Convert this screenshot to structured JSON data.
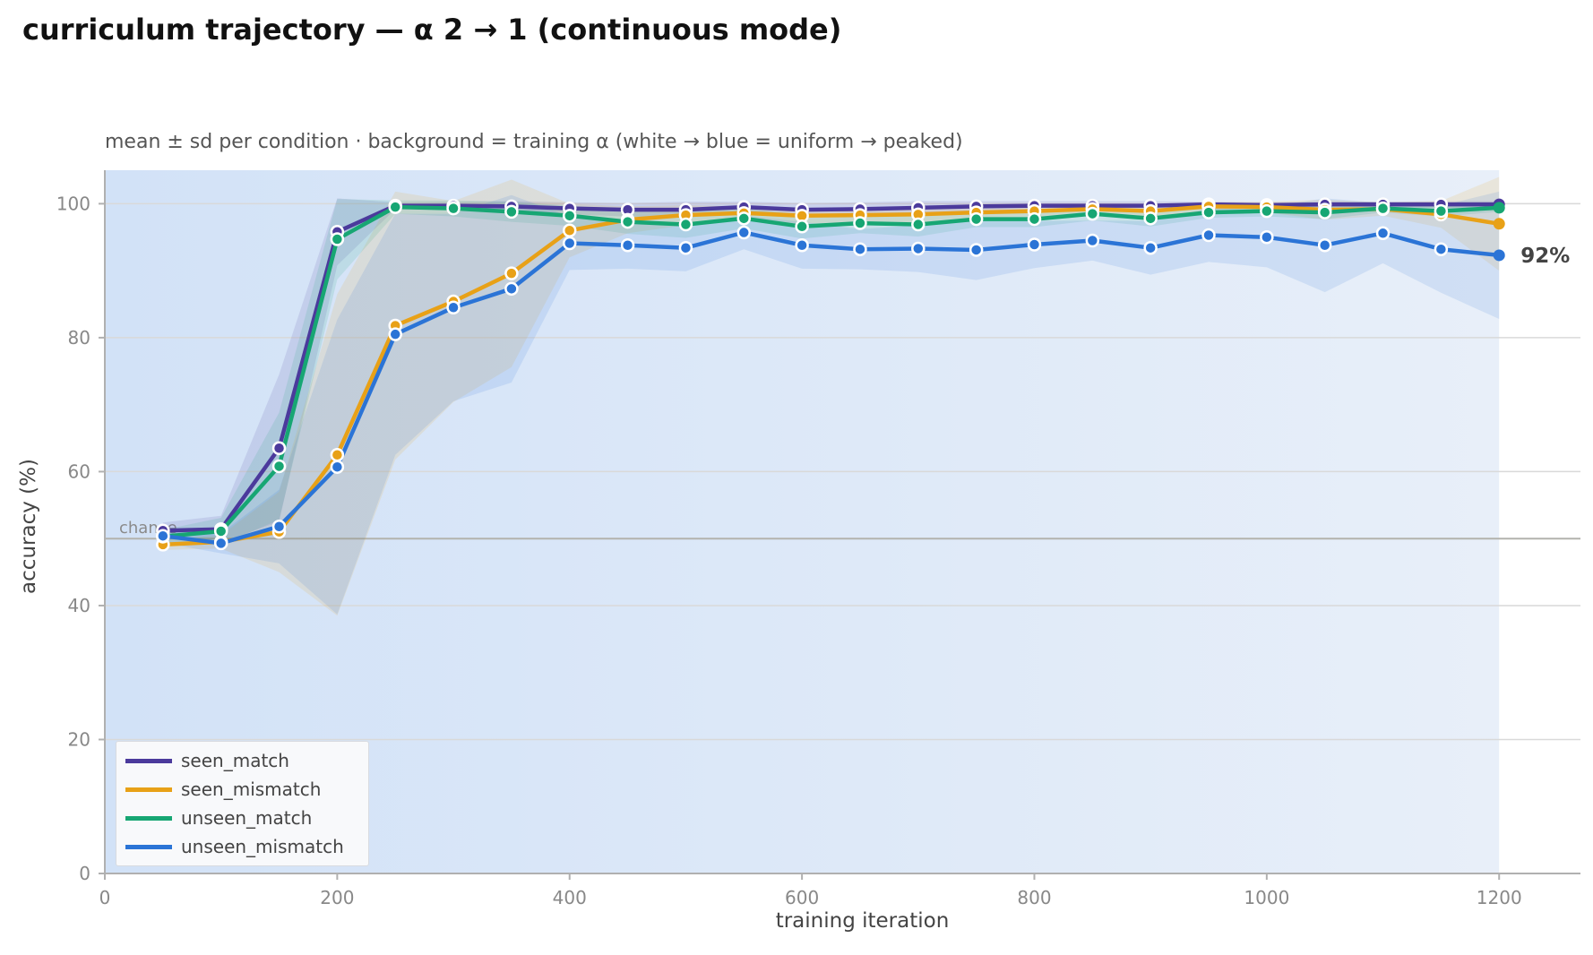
{
  "title": "curriculum trajectory — α 2 → 1 (continuous mode)",
  "subtitle": "mean ± sd per condition · background = training α (white → blue = uniform → peaked)",
  "chart_data": {
    "type": "line",
    "xlabel": "training iteration",
    "ylabel": "accuracy (%)",
    "xlim": [
      0,
      1270
    ],
    "ylim": [
      0,
      105
    ],
    "x_ticks": [
      0,
      200,
      400,
      600,
      800,
      1000,
      1200
    ],
    "y_ticks": [
      0,
      20,
      40,
      60,
      80,
      100
    ],
    "grid": "horizontal",
    "legend_position": "lower-left",
    "reference_line": {
      "label": "chance",
      "y": 50
    },
    "end_annotation": {
      "series": "unseen_mismatch",
      "text": "92%"
    },
    "background": {
      "x_range": [
        0,
        1200
      ],
      "from_color": "#d2e2f7",
      "to_color": "#e8eff9"
    },
    "x": [
      50,
      100,
      150,
      200,
      250,
      300,
      350,
      400,
      450,
      500,
      550,
      600,
      650,
      700,
      750,
      800,
      850,
      900,
      950,
      1000,
      1050,
      1100,
      1150,
      1200
    ],
    "series": [
      {
        "name": "seen_match",
        "color": "#4b3a9c",
        "values": [
          51.2,
          51.4,
          63.5,
          95.8,
          99.7,
          99.7,
          99.6,
          99.3,
          99.1,
          99.1,
          99.5,
          99.1,
          99.2,
          99.4,
          99.6,
          99.7,
          99.7,
          99.7,
          99.9,
          99.8,
          99.9,
          99.9,
          99.9,
          99.9
        ],
        "sd": [
          1.2,
          2.0,
          11.0,
          5.0,
          0.5,
          0.6,
          0.8,
          0.9,
          1.0,
          1.2,
          0.8,
          1.0,
          1.0,
          1.0,
          0.8,
          0.7,
          0.7,
          0.7,
          0.4,
          0.4,
          0.4,
          0.4,
          0.5,
          0.5
        ]
      },
      {
        "name": "seen_mismatch",
        "color": "#e8a117",
        "values": [
          49.1,
          49.5,
          51.0,
          62.5,
          81.8,
          85.4,
          89.6,
          96.0,
          97.6,
          98.3,
          98.6,
          98.2,
          98.3,
          98.4,
          98.7,
          98.9,
          99.2,
          98.9,
          99.6,
          99.5,
          99.1,
          99.2,
          98.4,
          97.0
        ],
        "sd": [
          0.8,
          1.0,
          6.0,
          24.0,
          20.0,
          15.0,
          14.0,
          4.0,
          2.0,
          1.5,
          1.0,
          1.2,
          1.0,
          1.2,
          1.0,
          1.0,
          0.8,
          1.0,
          0.6,
          0.8,
          1.5,
          1.0,
          2.0,
          7.0
        ]
      },
      {
        "name": "unseen_match",
        "color": "#17a673",
        "values": [
          50.3,
          51.1,
          60.8,
          94.7,
          99.5,
          99.3,
          98.8,
          98.2,
          97.3,
          96.9,
          97.8,
          96.6,
          97.1,
          96.9,
          97.7,
          97.7,
          98.5,
          97.8,
          98.7,
          98.9,
          98.7,
          99.3,
          98.9,
          99.4
        ],
        "sd": [
          1.0,
          2.0,
          8.0,
          6.0,
          1.0,
          1.2,
          1.5,
          1.5,
          1.8,
          2.0,
          1.5,
          1.8,
          1.5,
          1.8,
          1.2,
          1.2,
          1.0,
          1.2,
          0.8,
          0.8,
          1.0,
          0.6,
          0.8,
          0.6
        ]
      },
      {
        "name": "unseen_mismatch",
        "color": "#2b74d6",
        "values": [
          50.4,
          49.3,
          51.8,
          60.7,
          80.5,
          84.5,
          87.3,
          94.1,
          93.8,
          93.4,
          95.7,
          93.8,
          93.2,
          93.3,
          93.1,
          93.9,
          94.5,
          93.4,
          95.3,
          95.0,
          93.8,
          95.6,
          93.2,
          92.3
        ],
        "sd": [
          1.0,
          1.5,
          5.5,
          22.0,
          18.0,
          14.0,
          14.0,
          4.0,
          3.5,
          3.5,
          2.5,
          3.5,
          3.0,
          3.5,
          4.5,
          3.5,
          3.0,
          4.0,
          4.0,
          4.5,
          7.0,
          4.5,
          6.5,
          9.5
        ]
      }
    ]
  }
}
